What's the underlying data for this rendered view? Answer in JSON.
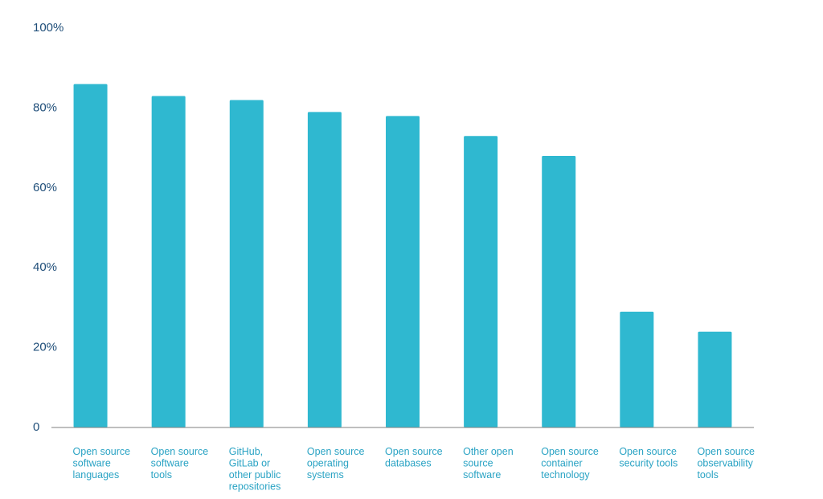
{
  "chart_data": {
    "type": "bar",
    "title": "",
    "xlabel": "",
    "ylabel": "",
    "ylim": [
      0,
      100
    ],
    "y_ticks": [
      {
        "value": 0,
        "label": "0"
      },
      {
        "value": 20,
        "label": "20%"
      },
      {
        "value": 40,
        "label": "40%"
      },
      {
        "value": 60,
        "label": "60%"
      },
      {
        "value": 80,
        "label": "80%"
      },
      {
        "value": 100,
        "label": "100%"
      }
    ],
    "grid": false,
    "legend": "none",
    "bar_color": "#2fb8d0",
    "tick_label_color": "#1f4e79",
    "category_label_color": "#2aa3c4",
    "axis_color": "#7f7f7f",
    "categories": [
      [
        "Open source",
        "software",
        "languages"
      ],
      [
        "Open source",
        "software",
        "tools"
      ],
      [
        "GitHub,",
        "GitLab or",
        "other public",
        "repositories"
      ],
      [
        "Open source",
        "operating",
        "systems"
      ],
      [
        "Open source",
        "databases"
      ],
      [
        "Other open",
        "source",
        "software"
      ],
      [
        "Open source",
        "container",
        "technology"
      ],
      [
        "Open source",
        "security tools"
      ],
      [
        "Open source",
        "observability",
        "tools"
      ]
    ],
    "values": [
      86,
      83,
      82,
      79,
      78,
      73,
      68,
      29,
      24
    ]
  }
}
